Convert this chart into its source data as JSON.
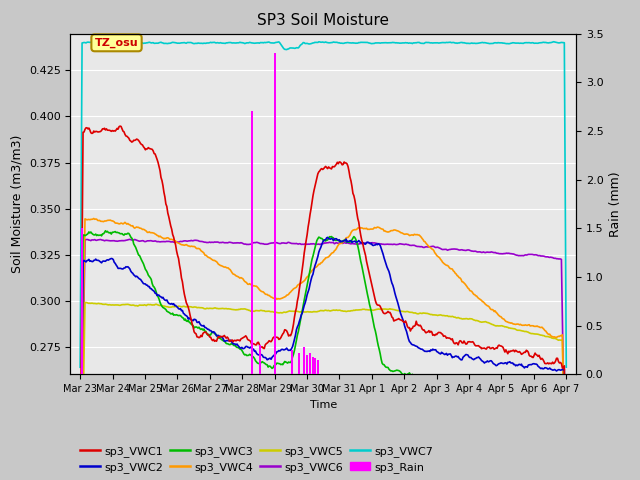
{
  "title": "SP3 Soil Moisture",
  "xlabel": "Time",
  "ylabel_left": "Soil Moisture (m3/m3)",
  "ylabel_right": "Rain (mm)",
  "ylim_left": [
    0.26,
    0.445
  ],
  "ylim_right": [
    0.0,
    3.5
  ],
  "fig_bg_color": "#c8c8c8",
  "plot_bg_color": "#e8e8e8",
  "tz_label": "TZ_osu",
  "tz_box_color": "#ffff99",
  "tz_text_color": "#cc0000",
  "tz_border_color": "#aa8800",
  "x_tick_labels": [
    "Mar 23",
    "Mar 24",
    "Mar 25",
    "Mar 26",
    "Mar 27",
    "Mar 28",
    "Mar 29",
    "Mar 30",
    "Mar 31",
    "Apr 1",
    "Apr 2",
    "Apr 3",
    "Apr 4",
    "Apr 5",
    "Apr 6",
    "Apr 7"
  ],
  "colors": {
    "sp3_VWC1": "#dd0000",
    "sp3_VWC2": "#0000cc",
    "sp3_VWC3": "#00bb00",
    "sp3_VWC4": "#ff9900",
    "sp3_VWC5": "#cccc00",
    "sp3_VWC6": "#9900cc",
    "sp3_VWC7": "#00cccc",
    "sp3_Rain": "#ff00ff"
  },
  "grid_color": "#ffffff",
  "n_points": 500,
  "legend_order": [
    "sp3_VWC1",
    "sp3_VWC2",
    "sp3_VWC3",
    "sp3_VWC4",
    "sp3_VWC5",
    "sp3_VWC6",
    "sp3_VWC7",
    "sp3_Rain"
  ],
  "legend_ncol": 4
}
